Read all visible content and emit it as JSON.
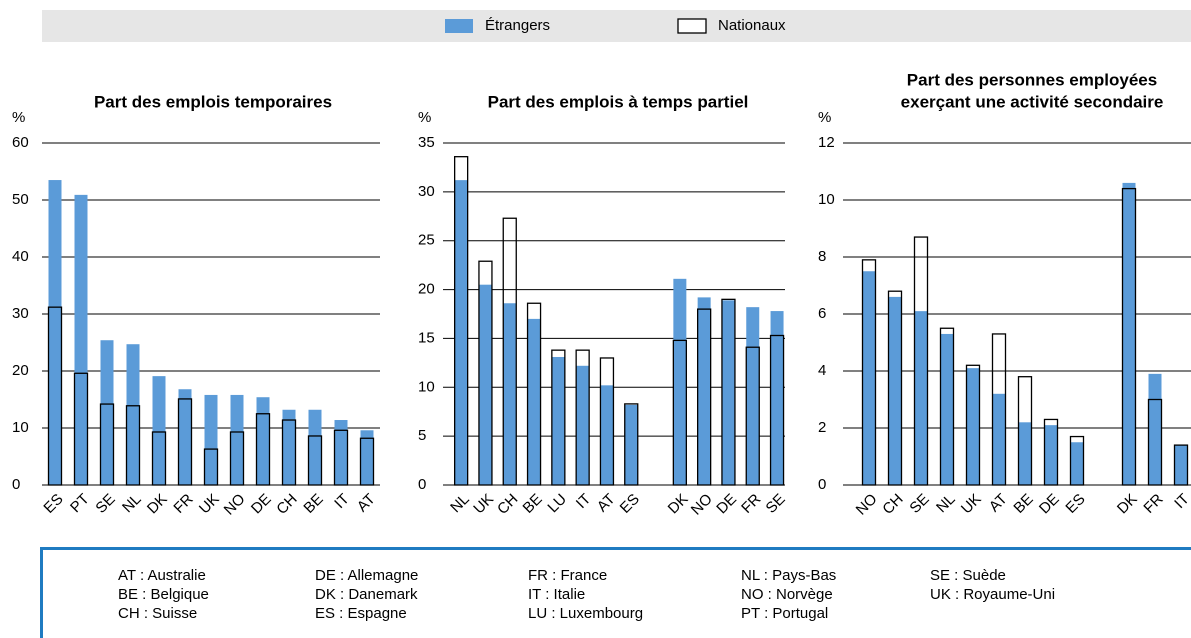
{
  "legend": {
    "series": [
      {
        "name": "Étrangers",
        "color": "#5b9bd8",
        "style": "filled"
      },
      {
        "name": "Nationaux",
        "color": "#000000",
        "style": "outline"
      }
    ]
  },
  "chart_data": [
    {
      "type": "bar",
      "title": [
        "Part des emplois temporaires"
      ],
      "ylabel": "%",
      "categories": [
        "ES",
        "PT",
        "SE",
        "NL",
        "DK",
        "FR",
        "UK",
        "NO",
        "DE",
        "CH",
        "BE",
        "IT",
        "AT"
      ],
      "series": [
        {
          "values": [
            53.5,
            50.9,
            25.4,
            24.7,
            19.1,
            16.8,
            15.8,
            15.8,
            15.4,
            13.2,
            13.2,
            11.4,
            9.6
          ]
        },
        {
          "values": [
            31.2,
            19.6,
            14.2,
            13.9,
            9.3,
            15.1,
            6.3,
            9.3,
            12.5,
            11.4,
            8.6,
            9.6,
            8.2
          ]
        }
      ],
      "ylim": [
        0,
        60
      ],
      "yticks": [
        0,
        10,
        20,
        30,
        40,
        50,
        60
      ],
      "grid": true
    },
    {
      "type": "bar",
      "title": [
        "Part des emplois à temps partiel"
      ],
      "ylabel": "%",
      "categories": [
        "NL",
        "UK",
        "CH",
        "BE",
        "LU",
        "IT",
        "AT",
        "ES",
        null,
        "DK",
        "NO",
        "DE",
        "FR",
        "SE"
      ],
      "series": [
        {
          "values": [
            31.2,
            20.5,
            18.6,
            17.0,
            13.1,
            12.2,
            10.2,
            8.2,
            null,
            21.1,
            19.2,
            18.9,
            18.2,
            17.8
          ]
        },
        {
          "values": [
            33.6,
            22.9,
            27.3,
            18.6,
            13.8,
            13.8,
            13.0,
            8.3,
            null,
            14.8,
            18.0,
            19.0,
            14.1,
            15.3
          ]
        }
      ],
      "ylim": [
        0,
        35
      ],
      "yticks": [
        0,
        5,
        10,
        15,
        20,
        25,
        30,
        35
      ],
      "grid": true
    },
    {
      "type": "bar",
      "title": [
        "Part des personnes employées",
        "exerçant une activité secondaire"
      ],
      "ylabel": "%",
      "categories": [
        "NO",
        "CH",
        "SE",
        "NL",
        "UK",
        "AT",
        "BE",
        "DE",
        "ES",
        null,
        "DK",
        "FR",
        "IT"
      ],
      "series": [
        {
          "values": [
            7.5,
            6.6,
            6.1,
            5.3,
            4.1,
            3.2,
            2.2,
            2.1,
            1.5,
            null,
            10.6,
            3.9,
            1.4
          ]
        },
        {
          "values": [
            7.9,
            6.8,
            8.7,
            5.5,
            4.2,
            5.3,
            3.8,
            2.3,
            1.7,
            null,
            10.4,
            3.0,
            1.4
          ]
        }
      ],
      "ylim": [
        0,
        12
      ],
      "yticks": [
        0,
        2,
        4,
        6,
        8,
        10,
        12
      ],
      "grid": true
    }
  ],
  "country_codes": [
    [
      "AT : Australie",
      "BE : Belgique",
      "CH : Suisse"
    ],
    [
      "DE : Allemagne",
      "DK : Danemark",
      "ES : Espagne"
    ],
    [
      "FR : France",
      "IT : Italie",
      "LU : Luxembourg"
    ],
    [
      "NL : Pays-Bas",
      "NO : Norvège",
      "PT : Portugal"
    ],
    [
      "SE : Suède",
      "UK : Royaume-Uni"
    ]
  ]
}
